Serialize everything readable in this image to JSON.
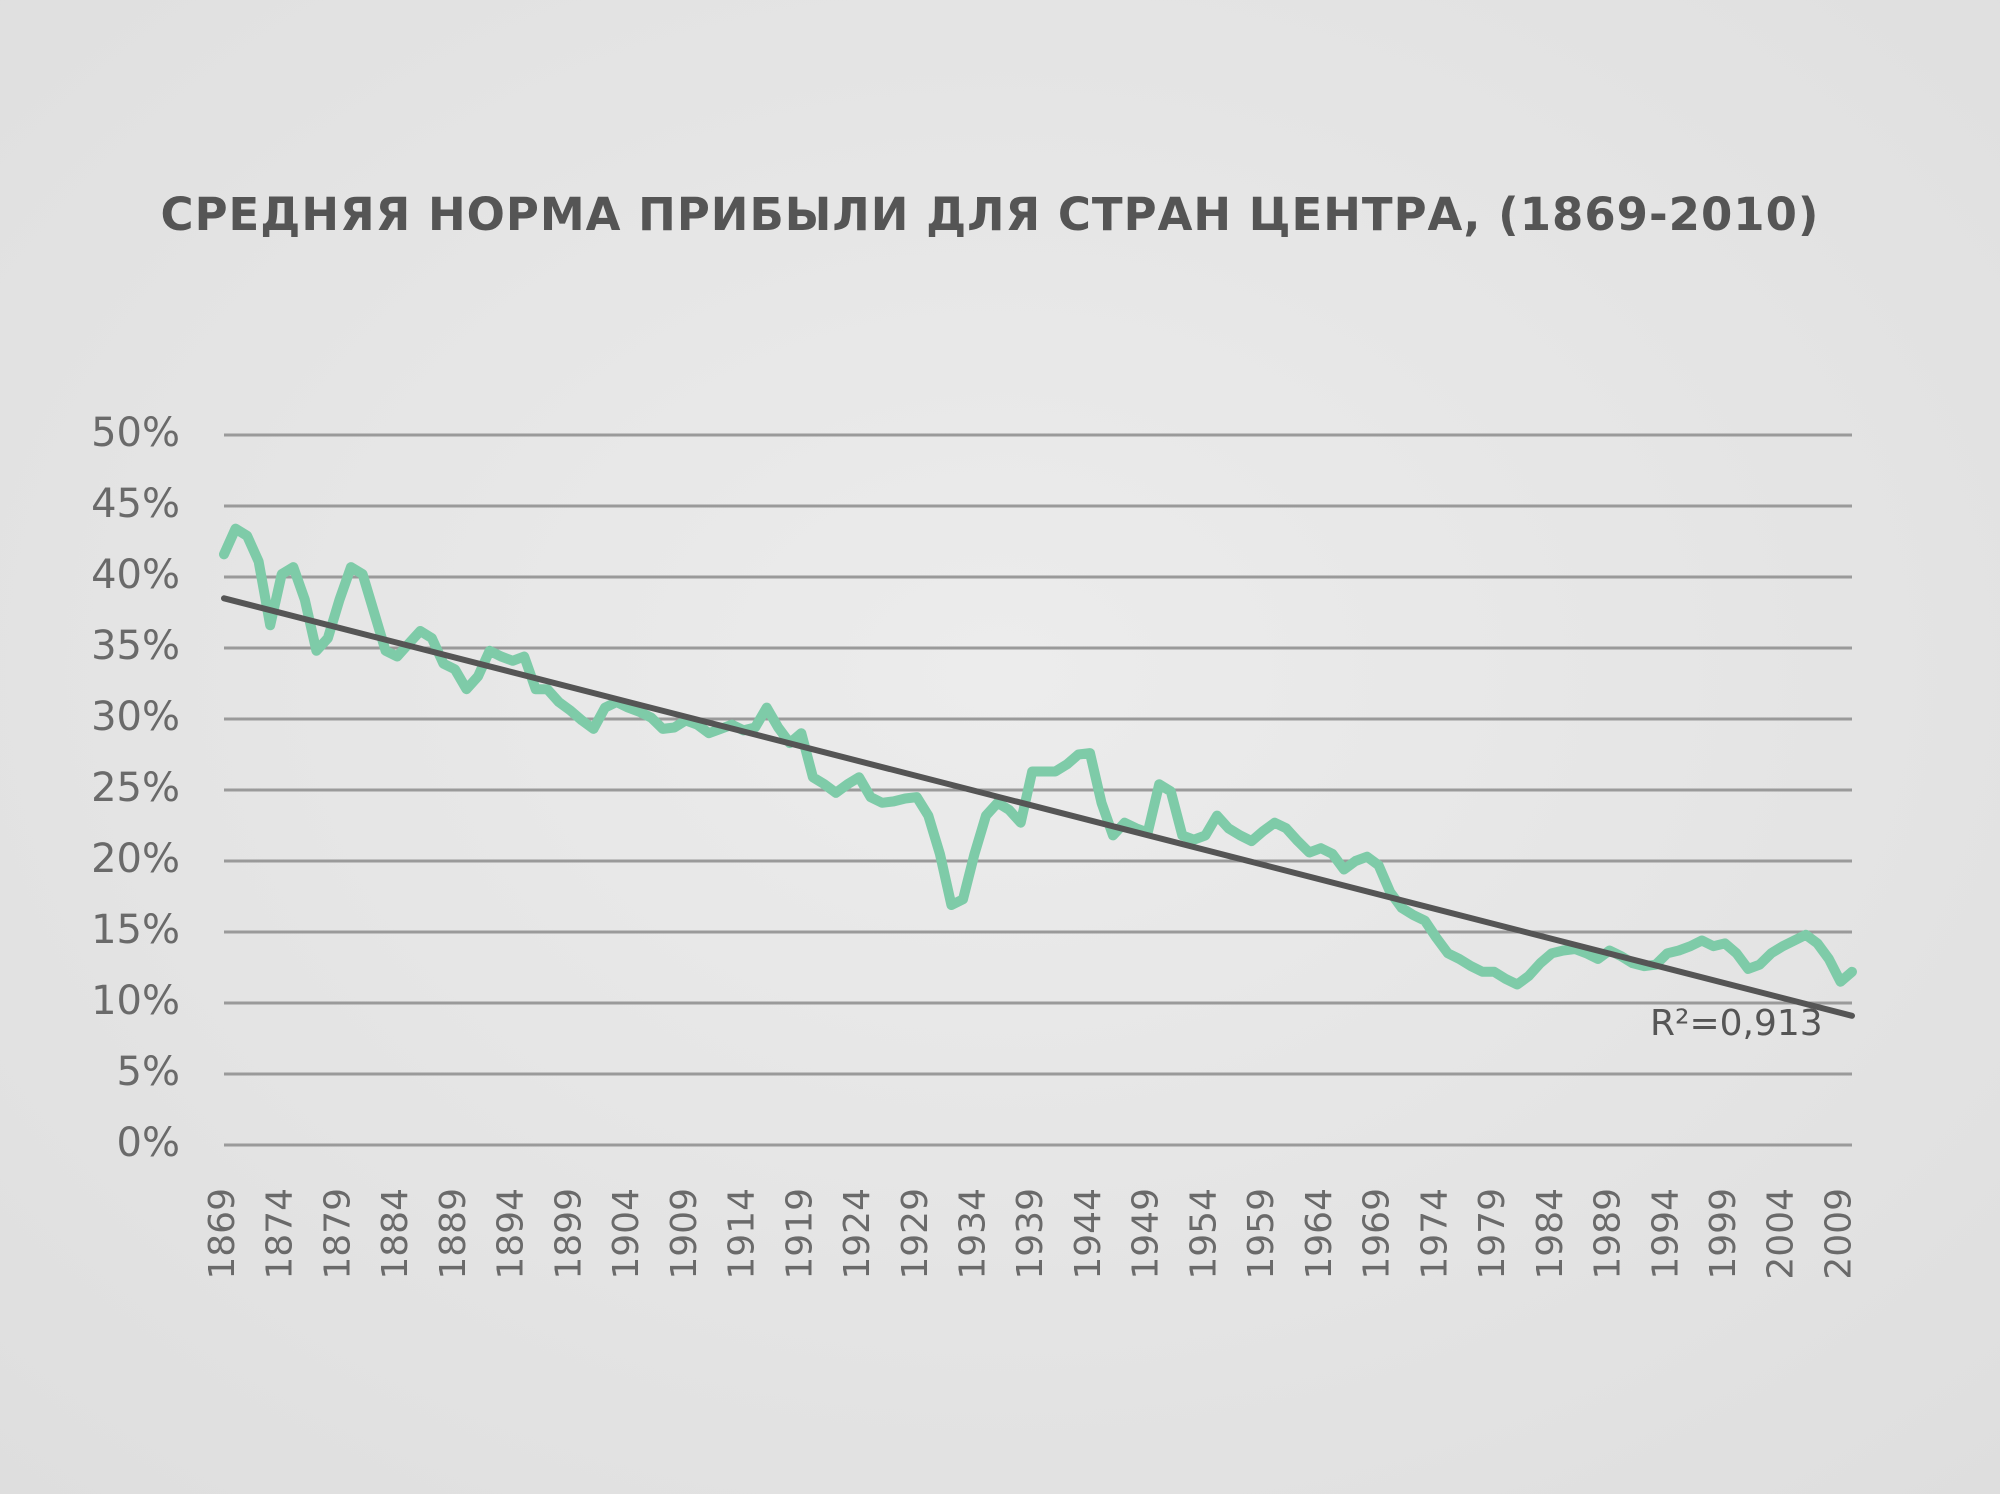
{
  "chart_data": {
    "type": "line",
    "title": "СРЕДНЯЯ НОРМА ПРИБЫЛИ ДЛЯ СТРАН ЦЕНТРА, (1869-2010)",
    "annotation": "R²=0,913",
    "x": [
      1869,
      1870,
      1871,
      1872,
      1873,
      1874,
      1875,
      1876,
      1877,
      1878,
      1879,
      1880,
      1881,
      1882,
      1883,
      1884,
      1885,
      1886,
      1887,
      1888,
      1889,
      1890,
      1891,
      1892,
      1893,
      1894,
      1895,
      1896,
      1897,
      1898,
      1899,
      1900,
      1901,
      1902,
      1903,
      1904,
      1905,
      1906,
      1907,
      1908,
      1909,
      1910,
      1911,
      1912,
      1913,
      1914,
      1915,
      1916,
      1917,
      1918,
      1919,
      1920,
      1921,
      1922,
      1923,
      1924,
      1925,
      1926,
      1927,
      1928,
      1929,
      1930,
      1931,
      1932,
      1933,
      1934,
      1935,
      1936,
      1937,
      1938,
      1939,
      1940,
      1941,
      1942,
      1943,
      1944,
      1945,
      1946,
      1947,
      1948,
      1949,
      1950,
      1951,
      1952,
      1953,
      1954,
      1955,
      1956,
      1957,
      1958,
      1959,
      1960,
      1961,
      1962,
      1963,
      1964,
      1965,
      1966,
      1967,
      1968,
      1969,
      1970,
      1971,
      1972,
      1973,
      1974,
      1975,
      1976,
      1977,
      1978,
      1979,
      1980,
      1981,
      1982,
      1983,
      1984,
      1985,
      1986,
      1987,
      1988,
      1989,
      1990,
      1991,
      1992,
      1993,
      1994,
      1995,
      1996,
      1997,
      1998,
      1999,
      2000,
      2001,
      2002,
      2003,
      2004,
      2005,
      2006,
      2007,
      2008,
      2009,
      2010
    ],
    "series": [
      {
        "color": "#7ecba8",
        "values": [
          41.6,
          43.4,
          42.9,
          41.1,
          36.6,
          40.2,
          40.7,
          38.4,
          34.8,
          35.7,
          38.4,
          40.7,
          40.2,
          37.5,
          34.8,
          34.4,
          35.3,
          36.2,
          35.7,
          33.9,
          33.5,
          32.1,
          33.0,
          34.8,
          34.4,
          34.1,
          34.4,
          32.1,
          32.1,
          31.2,
          30.6,
          29.9,
          29.3,
          30.8,
          31.2,
          30.8,
          30.5,
          30.1,
          29.3,
          29.4,
          29.9,
          29.6,
          29.0,
          29.3,
          29.6,
          29.2,
          29.4,
          30.8,
          29.4,
          28.3,
          29.0,
          25.9,
          25.4,
          24.8,
          25.4,
          25.9,
          24.5,
          24.1,
          24.2,
          24.4,
          24.5,
          23.2,
          20.5,
          16.9,
          17.3,
          20.5,
          23.2,
          24.1,
          23.6,
          22.7,
          26.3,
          26.3,
          26.3,
          26.8,
          27.5,
          27.6,
          24.1,
          21.8,
          22.7,
          22.3,
          22.0,
          25.4,
          24.9,
          21.8,
          21.5,
          21.8,
          23.2,
          22.3,
          21.8,
          21.4,
          22.1,
          22.7,
          22.3,
          21.4,
          20.6,
          20.9,
          20.5,
          19.4,
          20.0,
          20.3,
          19.7,
          17.8,
          16.7,
          16.2,
          15.8,
          14.6,
          13.5,
          13.1,
          12.6,
          12.2,
          12.2,
          11.7,
          11.3,
          11.9,
          12.8,
          13.5,
          13.7,
          13.8,
          13.5,
          13.1,
          13.7,
          13.3,
          12.8,
          12.6,
          12.7,
          13.5,
          13.7,
          14.0,
          14.4,
          14.0,
          14.2,
          13.5,
          12.4,
          12.7,
          13.5,
          14.0,
          14.4,
          14.8,
          14.2,
          13.1,
          11.5,
          12.2
        ]
      },
      {
        "color": "#555555",
        "x": [
          1869,
          2010
        ],
        "values": [
          38.5,
          9.1
        ]
      }
    ],
    "xlim": [
      1869,
      2010
    ],
    "xticks": [
      1869,
      1874,
      1879,
      1884,
      1889,
      1894,
      1899,
      1904,
      1909,
      1914,
      1919,
      1924,
      1929,
      1934,
      1939,
      1944,
      1949,
      1954,
      1959,
      1964,
      1969,
      1974,
      1979,
      1984,
      1989,
      1994,
      1999,
      2004,
      2009
    ],
    "ylim": [
      0,
      50
    ],
    "yticks": [
      {
        "value": 0,
        "label": "0%"
      },
      {
        "value": 5,
        "label": "5%"
      },
      {
        "value": 10,
        "label": "10%"
      },
      {
        "value": 15,
        "label": "15%"
      },
      {
        "value": 20,
        "label": "20%"
      },
      {
        "value": 25,
        "label": "25%"
      },
      {
        "value": 30,
        "label": "30%"
      },
      {
        "value": 35,
        "label": "35%"
      },
      {
        "value": 40,
        "label": "40%"
      },
      {
        "value": 45,
        "label": "45%"
      },
      {
        "value": 50,
        "label": "50%"
      }
    ],
    "grid": true
  }
}
